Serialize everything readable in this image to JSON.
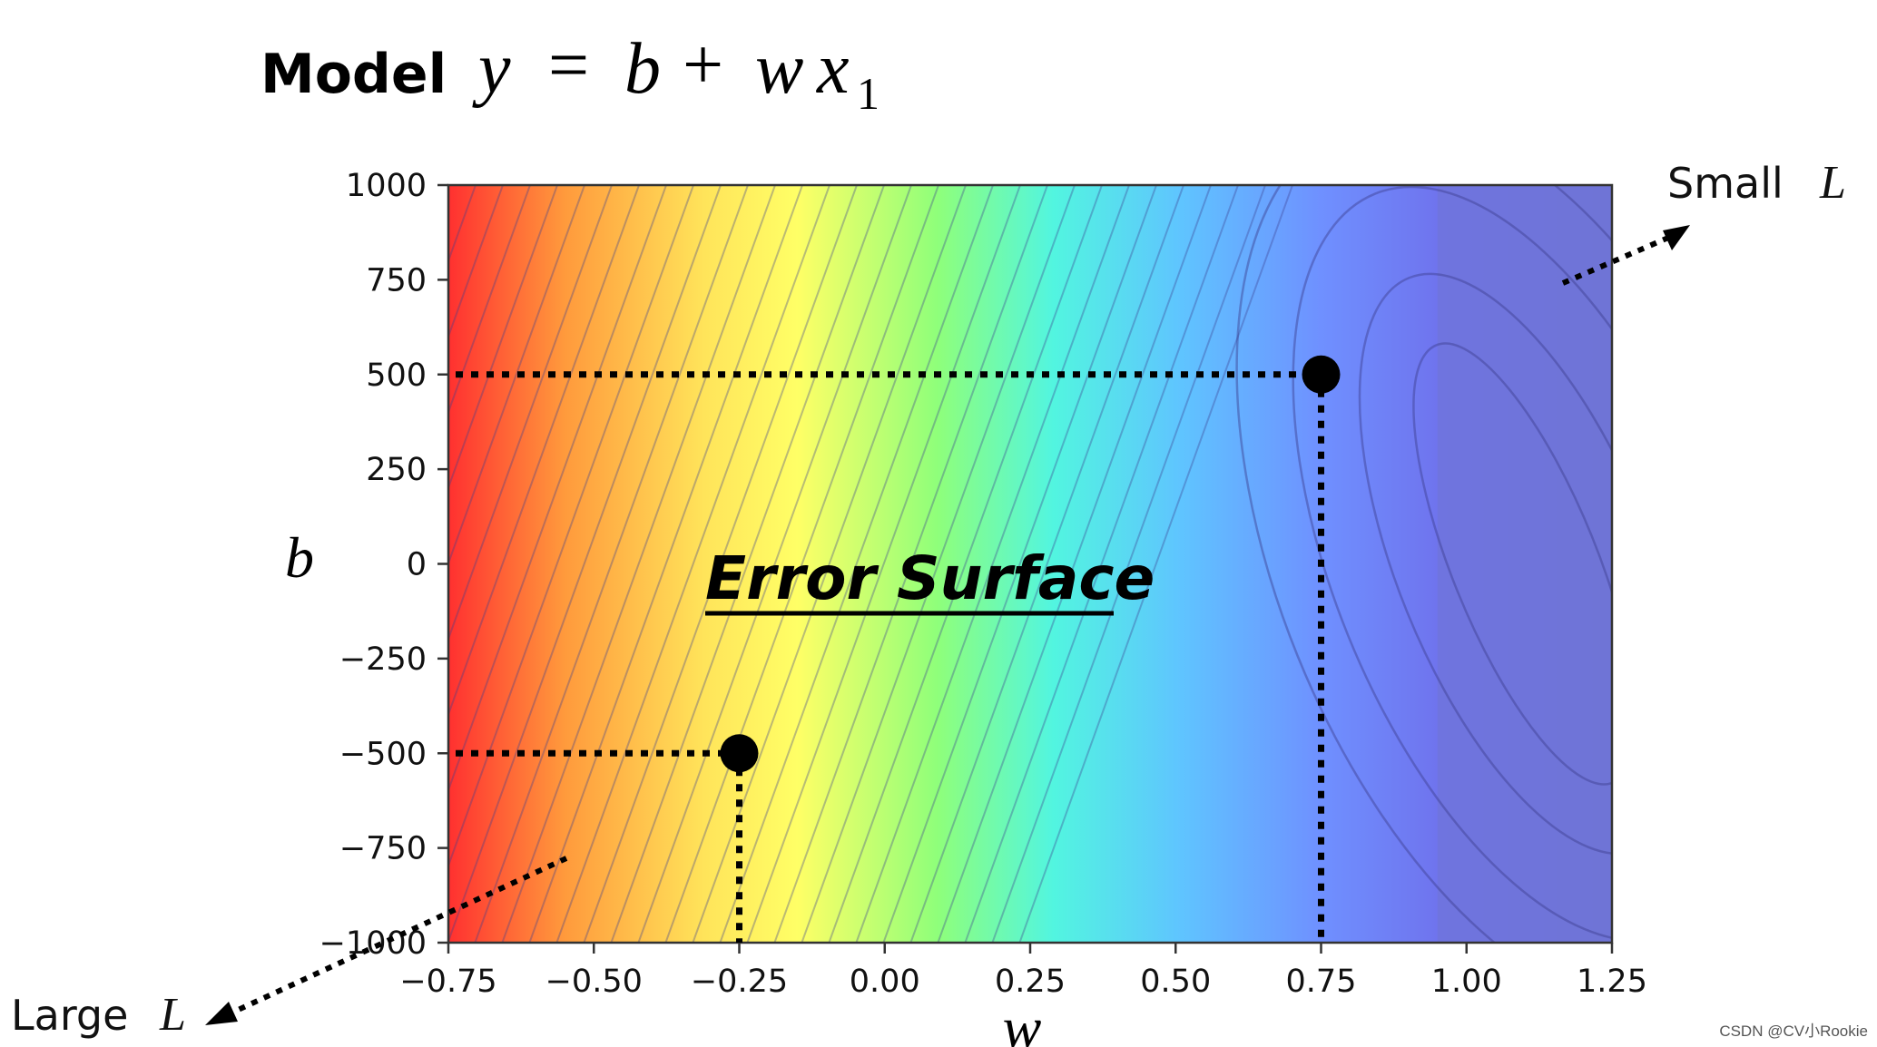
{
  "colors": {
    "high_loss": "#ff3030",
    "mid_loss": "#ffff66",
    "low_loss": "#6f74d6",
    "contour_line": "#3b3f8f",
    "marker": "#000000"
  },
  "title": {
    "word": "Model",
    "equation_lhs": "y",
    "equation_eq": "=",
    "equation_b": "b",
    "equation_plus": "+",
    "equation_w": "w",
    "equation_x": "x",
    "equation_sub": "1"
  },
  "surface_label": "Error Surface",
  "annotations": {
    "small_text": "Small",
    "small_symbol": "L",
    "large_text": "Large",
    "large_symbol": "L"
  },
  "watermark": "CSDN @CV小Rookie",
  "chart_data": {
    "type": "heatmap",
    "title": "",
    "xlabel": "w",
    "ylabel": "b",
    "xlim": [
      -0.75,
      1.25
    ],
    "ylim": [
      -1000,
      1000
    ],
    "xticks": [
      {
        "value": -0.75,
        "label": "−0.75"
      },
      {
        "value": -0.5,
        "label": "−0.50"
      },
      {
        "value": -0.25,
        "label": "−0.25"
      },
      {
        "value": 0.0,
        "label": "0.00"
      },
      {
        "value": 0.25,
        "label": "0.25"
      },
      {
        "value": 0.5,
        "label": "0.50"
      },
      {
        "value": 0.75,
        "label": "0.75"
      },
      {
        "value": 1.0,
        "label": "1.00"
      },
      {
        "value": 1.25,
        "label": "1.25"
      }
    ],
    "yticks": [
      {
        "value": 1000,
        "label": "1000"
      },
      {
        "value": 750,
        "label": "750"
      },
      {
        "value": 500,
        "label": "500"
      },
      {
        "value": 250,
        "label": "250"
      },
      {
        "value": 0,
        "label": "0"
      },
      {
        "value": -250,
        "label": "−250"
      },
      {
        "value": -500,
        "label": "−500"
      },
      {
        "value": -750,
        "label": "−750"
      },
      {
        "value": -1000,
        "label": "−1000"
      }
    ],
    "points": [
      {
        "w": 0.75,
        "b": 500
      },
      {
        "w": -0.25,
        "b": -500
      }
    ],
    "minimum": {
      "w": 1.1,
      "b": 0
    },
    "colormap": "rainbow (red = large loss, blue = small loss)",
    "grid": false
  }
}
